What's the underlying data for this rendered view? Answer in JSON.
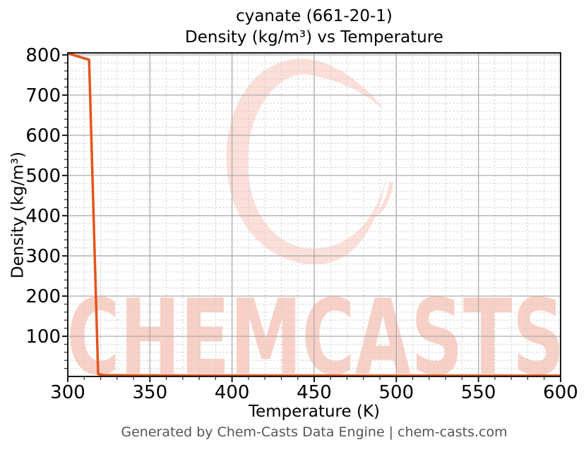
{
  "chart_data": {
    "type": "line",
    "title": "cyanate (661-20-1)",
    "subtitle": "Density (kg/m³) vs Temperature",
    "xlabel": "Temperature (K)",
    "ylabel": "Density (kg/m³)",
    "xlim": [
      300,
      600
    ],
    "ylim": [
      0,
      805
    ],
    "xticks": [
      300,
      350,
      400,
      450,
      500,
      550,
      600
    ],
    "yticks": [
      100,
      200,
      300,
      400,
      500,
      600,
      700,
      800
    ],
    "x_minor_step": 10,
    "y_minor_step": 20,
    "grid": {
      "major": "solid",
      "minor": "dashed",
      "major_color": "#ababab",
      "minor_color": "#d0d0d0"
    },
    "legend": "none",
    "series": [
      {
        "name": "Density vs Temperature",
        "color": "#e2541d",
        "points": [
          [
            300,
            804
          ],
          [
            304,
            799
          ],
          [
            308,
            794
          ],
          [
            313,
            788
          ],
          [
            318.5,
            6
          ],
          [
            322,
            3
          ],
          [
            350,
            2.6
          ],
          [
            400,
            2.3
          ],
          [
            450,
            2.1
          ],
          [
            500,
            2.0
          ],
          [
            550,
            1.95
          ],
          [
            600,
            1.9
          ]
        ]
      }
    ]
  },
  "watermark": {
    "text": "CHEMCASTS",
    "logo": "brush-stroke-c-swirl",
    "text_color": "#f8d0c6",
    "logo_color": "#fcdfd8"
  },
  "footer": {
    "text": "Generated by Chem-Casts Data Engine | chem-casts.com"
  }
}
